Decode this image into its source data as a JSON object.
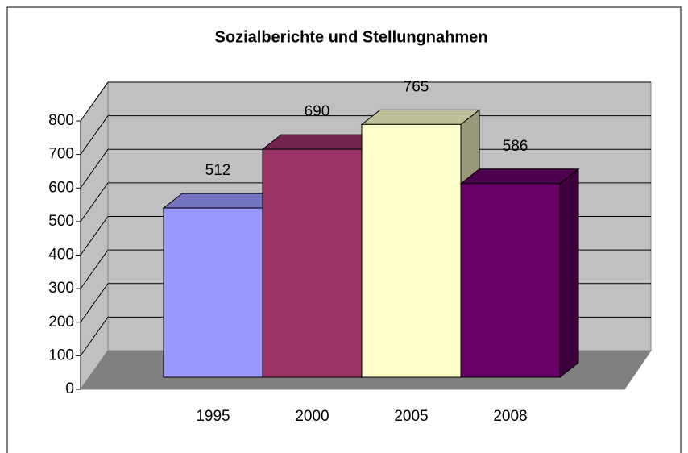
{
  "chart_data": {
    "type": "bar",
    "title": "Sozialberichte und Stellungnahmen",
    "categories": [
      "1995",
      "2000",
      "2005",
      "2008"
    ],
    "values": [
      512,
      690,
      765,
      586
    ],
    "colors": [
      "#9999ff",
      "#993366",
      "#ffffcc",
      "#660066"
    ],
    "ylim": [
      0,
      800
    ],
    "yticks": [
      0,
      100,
      200,
      300,
      400,
      500,
      600,
      700,
      800
    ],
    "grid": true
  }
}
